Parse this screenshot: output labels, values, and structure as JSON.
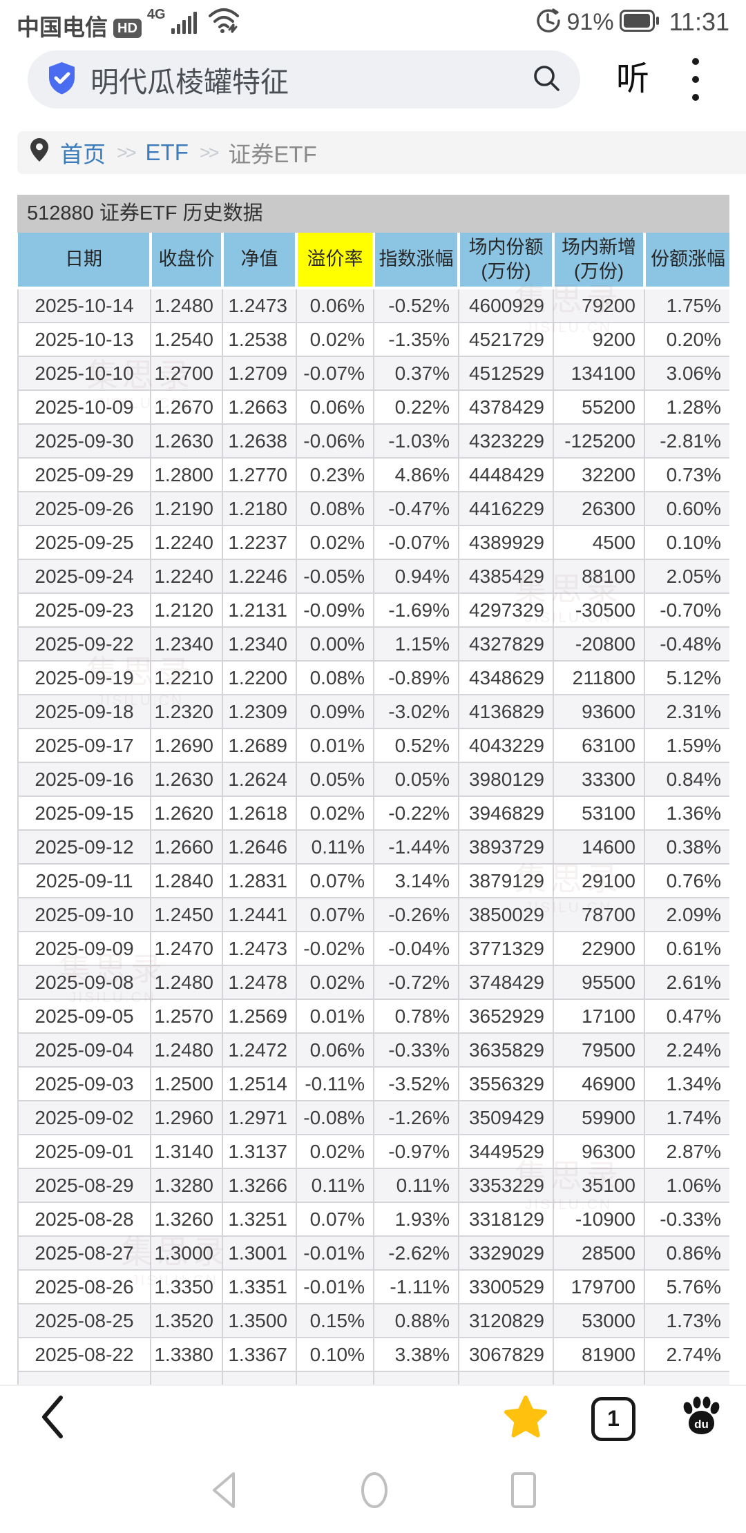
{
  "status_bar": {
    "carrier": "中国电信",
    "hd_badge": "HD",
    "network": "4G",
    "signal_icon": "signal-bars-icon",
    "wifi_icon": "wifi-icon",
    "alarm_icon": "alarm-clock-icon",
    "battery_percent": "91%",
    "battery_icon": "battery-icon",
    "time": "11:31"
  },
  "search": {
    "verified_icon": "shield-check-icon",
    "query": "明代瓜棱罐特征",
    "search_icon": "magnifier-icon",
    "listen_label": "听",
    "menu_icon": "kebab-menu-icon"
  },
  "breadcrumb": {
    "location_icon": "map-pin-icon",
    "separator": ">>",
    "items": [
      {
        "label": "首页",
        "type": "link"
      },
      {
        "label": "ETF",
        "type": "link"
      },
      {
        "label": "证券ETF",
        "type": "current"
      }
    ]
  },
  "table": {
    "title": "512880 证券ETF 历史数据",
    "headers": [
      {
        "key": "date",
        "label": "日期"
      },
      {
        "key": "close",
        "label": "收盘价"
      },
      {
        "key": "nav",
        "label": "净值"
      },
      {
        "key": "premium",
        "label": "溢价率",
        "highlight": true
      },
      {
        "key": "index_change",
        "label": "指数涨幅"
      },
      {
        "key": "onmarket_shares",
        "label": "场内份额",
        "sub": "(万份)"
      },
      {
        "key": "onmarket_new",
        "label": "场内新增",
        "sub": "(万份)"
      },
      {
        "key": "share_change",
        "label": "份额涨幅"
      }
    ],
    "rows": [
      [
        "2025-10-14",
        "1.2480",
        "1.2473",
        "0.06%",
        "-0.52%",
        "4600929",
        "79200",
        "1.75%"
      ],
      [
        "2025-10-13",
        "1.2540",
        "1.2538",
        "0.02%",
        "-1.35%",
        "4521729",
        "9200",
        "0.20%"
      ],
      [
        "2025-10-10",
        "1.2700",
        "1.2709",
        "-0.07%",
        "0.37%",
        "4512529",
        "134100",
        "3.06%"
      ],
      [
        "2025-10-09",
        "1.2670",
        "1.2663",
        "0.06%",
        "0.22%",
        "4378429",
        "55200",
        "1.28%"
      ],
      [
        "2025-09-30",
        "1.2630",
        "1.2638",
        "-0.06%",
        "-1.03%",
        "4323229",
        "-125200",
        "-2.81%"
      ],
      [
        "2025-09-29",
        "1.2800",
        "1.2770",
        "0.23%",
        "4.86%",
        "4448429",
        "32200",
        "0.73%"
      ],
      [
        "2025-09-26",
        "1.2190",
        "1.2180",
        "0.08%",
        "-0.47%",
        "4416229",
        "26300",
        "0.60%"
      ],
      [
        "2025-09-25",
        "1.2240",
        "1.2237",
        "0.02%",
        "-0.07%",
        "4389929",
        "4500",
        "0.10%"
      ],
      [
        "2025-09-24",
        "1.2240",
        "1.2246",
        "-0.05%",
        "0.94%",
        "4385429",
        "88100",
        "2.05%"
      ],
      [
        "2025-09-23",
        "1.2120",
        "1.2131",
        "-0.09%",
        "-1.69%",
        "4297329",
        "-30500",
        "-0.70%"
      ],
      [
        "2025-09-22",
        "1.2340",
        "1.2340",
        "0.00%",
        "1.15%",
        "4327829",
        "-20800",
        "-0.48%"
      ],
      [
        "2025-09-19",
        "1.2210",
        "1.2200",
        "0.08%",
        "-0.89%",
        "4348629",
        "211800",
        "5.12%"
      ],
      [
        "2025-09-18",
        "1.2320",
        "1.2309",
        "0.09%",
        "-3.02%",
        "4136829",
        "93600",
        "2.31%"
      ],
      [
        "2025-09-17",
        "1.2690",
        "1.2689",
        "0.01%",
        "0.52%",
        "4043229",
        "63100",
        "1.59%"
      ],
      [
        "2025-09-16",
        "1.2630",
        "1.2624",
        "0.05%",
        "0.05%",
        "3980129",
        "33300",
        "0.84%"
      ],
      [
        "2025-09-15",
        "1.2620",
        "1.2618",
        "0.02%",
        "-0.22%",
        "3946829",
        "53100",
        "1.36%"
      ],
      [
        "2025-09-12",
        "1.2660",
        "1.2646",
        "0.11%",
        "-1.44%",
        "3893729",
        "14600",
        "0.38%"
      ],
      [
        "2025-09-11",
        "1.2840",
        "1.2831",
        "0.07%",
        "3.14%",
        "3879129",
        "29100",
        "0.76%"
      ],
      [
        "2025-09-10",
        "1.2450",
        "1.2441",
        "0.07%",
        "-0.26%",
        "3850029",
        "78700",
        "2.09%"
      ],
      [
        "2025-09-09",
        "1.2470",
        "1.2473",
        "-0.02%",
        "-0.04%",
        "3771329",
        "22900",
        "0.61%"
      ],
      [
        "2025-09-08",
        "1.2480",
        "1.2478",
        "0.02%",
        "-0.72%",
        "3748429",
        "95500",
        "2.61%"
      ],
      [
        "2025-09-05",
        "1.2570",
        "1.2569",
        "0.01%",
        "0.78%",
        "3652929",
        "17100",
        "0.47%"
      ],
      [
        "2025-09-04",
        "1.2480",
        "1.2472",
        "0.06%",
        "-0.33%",
        "3635829",
        "79500",
        "2.24%"
      ],
      [
        "2025-09-03",
        "1.2500",
        "1.2514",
        "-0.11%",
        "-3.52%",
        "3556329",
        "46900",
        "1.34%"
      ],
      [
        "2025-09-02",
        "1.2960",
        "1.2971",
        "-0.08%",
        "-1.26%",
        "3509429",
        "59900",
        "1.74%"
      ],
      [
        "2025-09-01",
        "1.3140",
        "1.3137",
        "0.02%",
        "-0.97%",
        "3449529",
        "96300",
        "2.87%"
      ],
      [
        "2025-08-29",
        "1.3280",
        "1.3266",
        "0.11%",
        "0.11%",
        "3353229",
        "35100",
        "1.06%"
      ],
      [
        "2025-08-28",
        "1.3260",
        "1.3251",
        "0.07%",
        "1.93%",
        "3318129",
        "-10900",
        "-0.33%"
      ],
      [
        "2025-08-27",
        "1.3000",
        "1.3001",
        "-0.01%",
        "-2.62%",
        "3329029",
        "28500",
        "0.86%"
      ],
      [
        "2025-08-26",
        "1.3350",
        "1.3351",
        "-0.01%",
        "-1.11%",
        "3300529",
        "179700",
        "5.76%"
      ],
      [
        "2025-08-25",
        "1.3520",
        "1.3500",
        "0.15%",
        "0.88%",
        "3120829",
        "53000",
        "1.73%"
      ],
      [
        "2025-08-22",
        "1.3380",
        "1.3367",
        "0.10%",
        "3.38%",
        "3067829",
        "81900",
        "2.74%"
      ]
    ]
  },
  "watermark": {
    "name": "集思录",
    "domain": "JISILU.CN"
  },
  "toolbar": {
    "back_icon": "back-chevron-icon",
    "favorite_icon": "star-icon",
    "tab_count": "1",
    "baidu_icon": "baidu-paw-icon",
    "baidu_label": "du"
  },
  "sysnav": {
    "back_icon": "triangle-back-icon",
    "home_icon": "circle-home-icon",
    "recents_icon": "square-recents-icon"
  },
  "colors": {
    "header_blue": "#8cc5e3",
    "highlight_yellow": "#ffff00",
    "title_gray": "#c9c9c9",
    "row_alt_gray": "#f4f4f7",
    "link_blue": "#3e7dbd",
    "verified_blue": "#4a6cf0",
    "star_gold": "#ffc10e",
    "status_gray": "#4c4c4c"
  }
}
